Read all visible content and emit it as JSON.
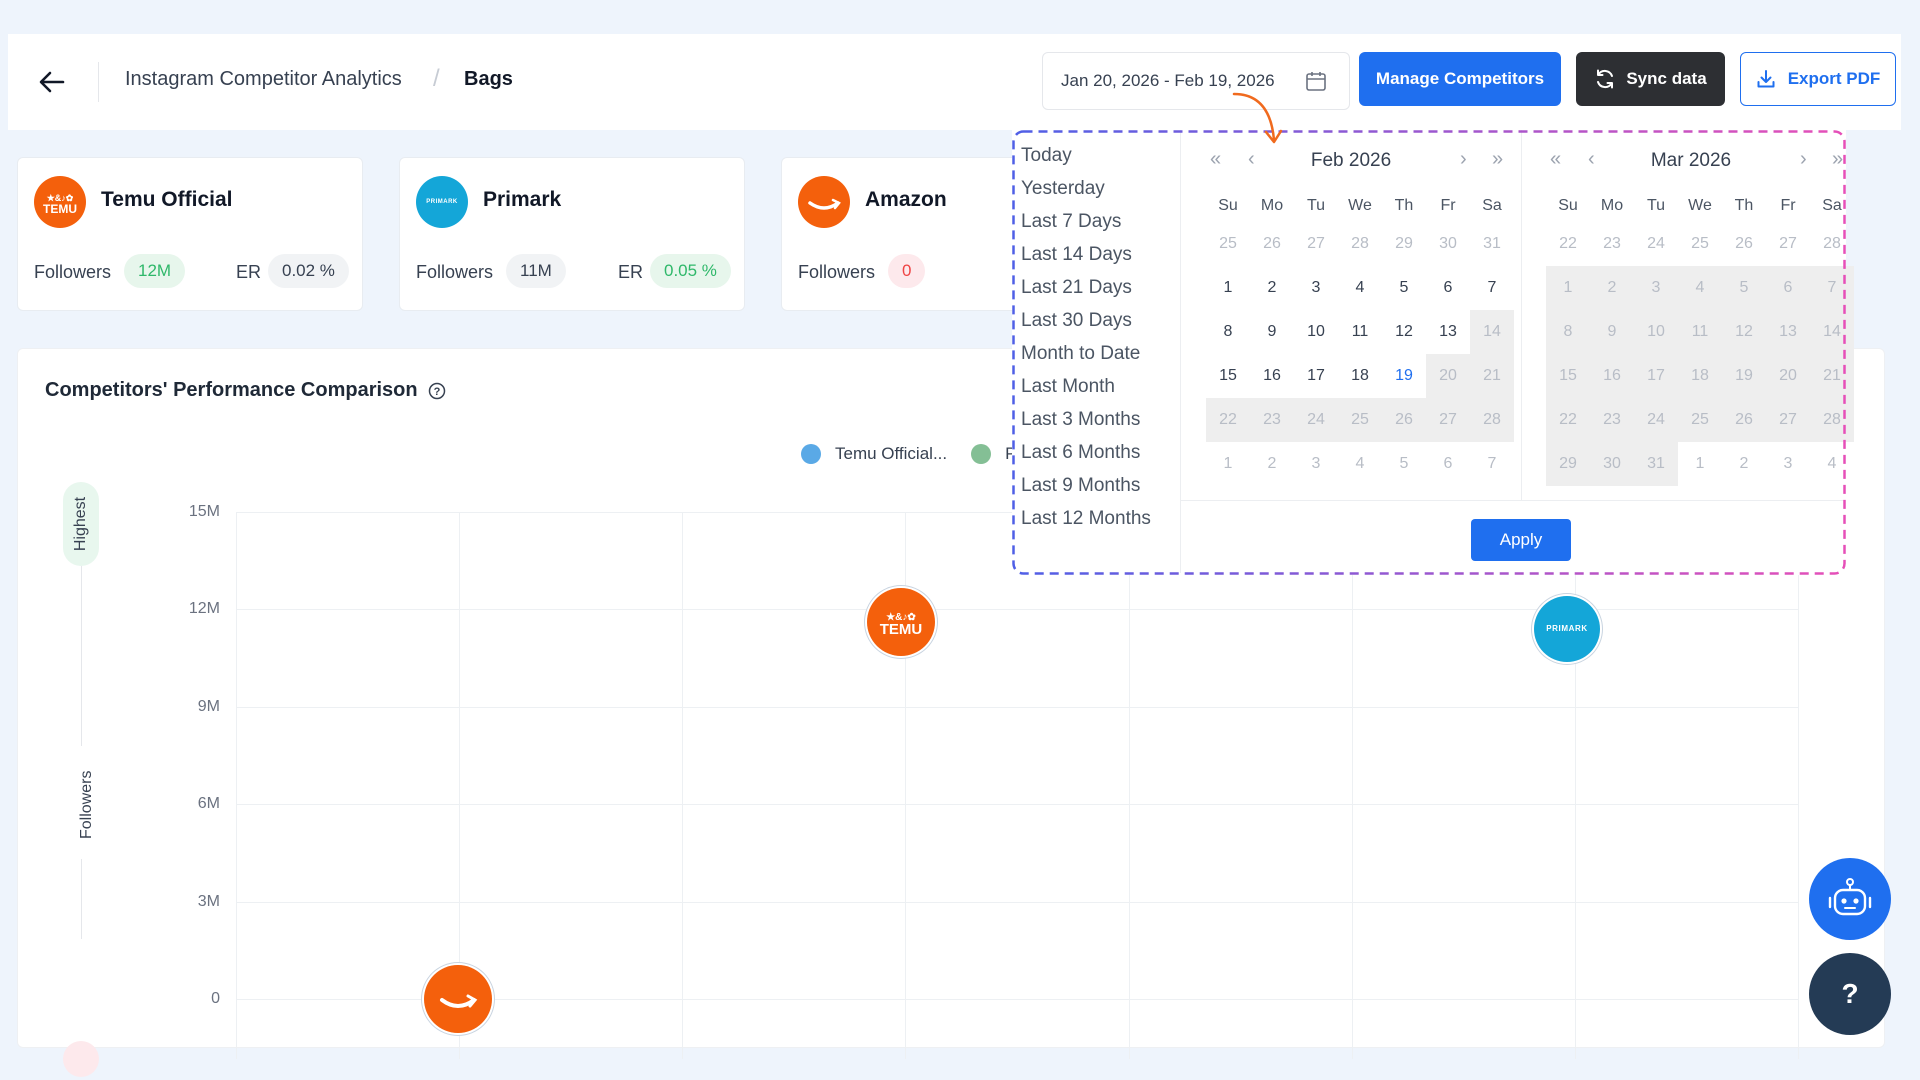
{
  "header": {
    "breadcrumb_1": "Instagram Competitor Analytics",
    "breadcrumb_sep": "/",
    "breadcrumb_2": "Bags",
    "date_range": "Jan 20, 2026 - Feb 19, 2026",
    "manage_label": "Manage Competitors",
    "sync_label": "Sync data",
    "export_label": "Export PDF"
  },
  "competitors": [
    {
      "name": "Temu Official",
      "followers_label": "Followers",
      "followers": "12M",
      "er_label": "ER",
      "er": "0.02 %",
      "logo_text": "TEMU",
      "logo_color": "#f4600c"
    },
    {
      "name": "Primark",
      "followers_label": "Followers",
      "followers": "11M",
      "er_label": "ER",
      "er": "0.05 %",
      "logo_text": "PRIMARK",
      "logo_color": "#14a6d8"
    },
    {
      "name": "Amazon",
      "followers_label": "Followers",
      "followers": "0",
      "logo_color": "#f4600c"
    }
  ],
  "chart": {
    "title": "Competitors' Performance Comparison",
    "help_icon": "question-circle-icon",
    "legend": [
      {
        "label": "Temu Official...",
        "color": "#5aa9e6"
      },
      {
        "label": "P",
        "color": "#84bf95"
      }
    ],
    "y_badge_top": "Highest",
    "y_axis_title": "Followers"
  },
  "chart_data": {
    "type": "scatter",
    "ylabel": "Followers",
    "ylim": [
      0,
      15000000
    ],
    "y_ticks": [
      "15M",
      "12M",
      "9M",
      "6M",
      "3M",
      "0"
    ],
    "series": [
      {
        "name": "Temu Official...",
        "points": [
          {
            "y": 11600000
          }
        ]
      },
      {
        "name": "P",
        "points": [
          {
            "y": 11400000
          }
        ]
      }
    ],
    "points": [
      {
        "brand": "Temu",
        "y": 11600000
      },
      {
        "brand": "Primark",
        "y": 11400000
      },
      {
        "brand": "Amazon",
        "y": 0
      }
    ]
  },
  "datepicker": {
    "presets": [
      "Today",
      "Yesterday",
      "Last 7 Days",
      "Last 14 Days",
      "Last 21 Days",
      "Last 30 Days",
      "Month to Date",
      "Last Month",
      "Last 3 Months",
      "Last 6 Months",
      "Last 9 Months",
      "Last 12 Months"
    ],
    "weekdays": [
      "Su",
      "Mo",
      "Tu",
      "We",
      "Th",
      "Fr",
      "Sa"
    ],
    "left": {
      "month": "Feb",
      "year": "2026",
      "days": [
        "25",
        "26",
        "27",
        "28",
        "29",
        "30",
        "31",
        "1",
        "2",
        "3",
        "4",
        "5",
        "6",
        "7",
        "8",
        "9",
        "10",
        "11",
        "12",
        "13",
        "14",
        "15",
        "16",
        "17",
        "18",
        "19",
        "20",
        "21",
        "22",
        "23",
        "24",
        "25",
        "26",
        "27",
        "28",
        "1",
        "2",
        "3",
        "4",
        "5",
        "6",
        "7"
      ]
    },
    "right": {
      "month": "Mar",
      "year": "2026",
      "days": [
        "22",
        "23",
        "24",
        "25",
        "26",
        "27",
        "28",
        "1",
        "2",
        "3",
        "4",
        "5",
        "6",
        "7",
        "8",
        "9",
        "10",
        "11",
        "12",
        "13",
        "14",
        "15",
        "16",
        "17",
        "18",
        "19",
        "20",
        "21",
        "22",
        "23",
        "24",
        "25",
        "26",
        "27",
        "28",
        "29",
        "30",
        "31",
        "1",
        "2",
        "3",
        "4"
      ]
    },
    "apply_label": "Apply"
  },
  "fab": {
    "help_label": "?"
  }
}
